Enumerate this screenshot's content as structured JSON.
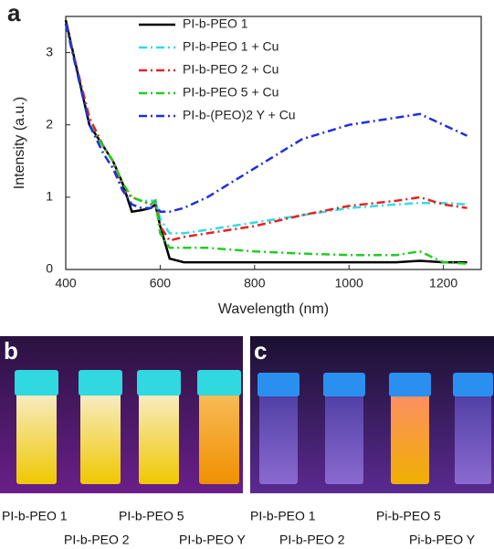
{
  "chart_data": {
    "type": "line",
    "panel_label": "a",
    "x_label": "Wavelength (nm)",
    "y_label": "Intensity (a.u.)",
    "x": [
      400,
      450,
      480,
      500,
      520,
      540,
      560,
      580,
      590,
      600,
      620,
      650,
      700,
      800,
      900,
      1000,
      1100,
      1150,
      1200,
      1250
    ],
    "series": [
      {
        "name": "PI-b-PEO 1",
        "color": "#000000",
        "style": "solid",
        "values": [
          3.45,
          2.0,
          1.7,
          1.5,
          1.2,
          0.8,
          0.82,
          0.85,
          0.9,
          0.6,
          0.15,
          0.1,
          0.1,
          0.1,
          0.1,
          0.1,
          0.1,
          0.12,
          0.1,
          0.1
        ]
      },
      {
        "name": "PI-b-PEO 1 + Cu",
        "color": "#33dbe6",
        "style": "dash-dot",
        "values": [
          3.4,
          2.1,
          1.7,
          1.5,
          1.1,
          1.0,
          0.95,
          0.95,
          0.95,
          0.7,
          0.5,
          0.5,
          0.55,
          0.65,
          0.75,
          0.85,
          0.9,
          0.92,
          0.92,
          0.9
        ]
      },
      {
        "name": "PI-b-PEO 2 + Cu",
        "color": "#e52222",
        "style": "dash-dot",
        "values": [
          3.4,
          2.1,
          1.7,
          1.5,
          1.1,
          1.0,
          0.95,
          0.9,
          0.95,
          0.6,
          0.4,
          0.45,
          0.5,
          0.6,
          0.75,
          0.88,
          0.95,
          1.0,
          0.9,
          0.85
        ]
      },
      {
        "name": "PI-b-PEO 5 + Cu",
        "color": "#22cc22",
        "style": "dash-dot",
        "values": [
          3.4,
          2.0,
          1.7,
          1.5,
          1.2,
          1.0,
          0.95,
          0.9,
          0.95,
          0.5,
          0.3,
          0.3,
          0.3,
          0.25,
          0.22,
          0.2,
          0.2,
          0.25,
          0.1,
          0.08
        ]
      },
      {
        "name": "PI-b-(PEO)2 Y + Cu",
        "color": "#1f2fe0",
        "style": "dash-dot",
        "values": [
          3.4,
          2.0,
          1.6,
          1.4,
          1.1,
          0.9,
          0.85,
          0.85,
          0.9,
          0.8,
          0.8,
          0.85,
          1.0,
          1.4,
          1.8,
          2.0,
          2.1,
          2.15,
          2.0,
          1.85
        ]
      }
    ],
    "xlim": [
      400,
      1280
    ],
    "ylim": [
      0,
      3.5
    ],
    "xticks": [
      400,
      600,
      800,
      1000,
      1200
    ],
    "yticks": [
      0,
      1,
      2,
      3
    ]
  },
  "photos": [
    {
      "label": "b",
      "captions": [
        "PI-b-PEO 1",
        "PI-b-PEO 5",
        "PI-b-PEO 2",
        "PI-b-PEO Y"
      ]
    },
    {
      "label": "c",
      "captions": [
        "PI-b-PEO 1",
        "Pi-b-PEO 5",
        "PI-b-PEO 2",
        "Pi-b-PEO Y"
      ]
    }
  ]
}
